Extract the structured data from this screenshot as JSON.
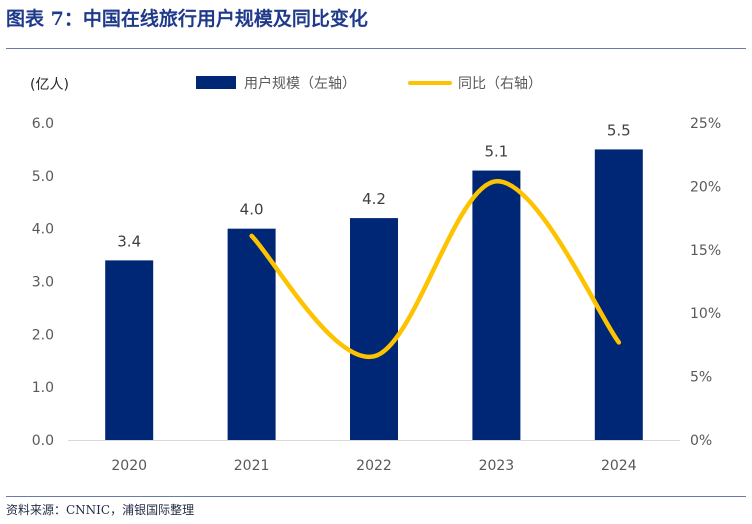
{
  "figure": {
    "title": "图表 7：中国在线旅行用户规模及同比变化",
    "source": "资料来源：CNNIC，浦银国际整理"
  },
  "colors": {
    "bar": "#002776",
    "line": "#FDC300",
    "title": "#1F3A8A",
    "axis_text": "#595959",
    "rule": "#6B7BA8"
  },
  "chart_data": {
    "type": "bar",
    "title": "中国在线旅行用户规模及同比变化",
    "unit_label": "(亿人)",
    "categories": [
      "2020",
      "2021",
      "2022",
      "2023",
      "2024"
    ],
    "series": [
      {
        "name": "用户规模（左轴）",
        "type": "bar",
        "axis": "left",
        "values": [
          3.4,
          4.0,
          4.2,
          5.1,
          5.5
        ]
      },
      {
        "name": "同比（右轴）",
        "type": "line",
        "axis": "right",
        "smooth": true,
        "values": [
          null,
          0.161,
          0.066,
          0.204,
          0.077
        ]
      }
    ],
    "data_labels": [
      "3.4",
      "4.0",
      "4.2",
      "5.1",
      "5.5"
    ],
    "y_left": {
      "min": 0,
      "max": 6,
      "ticks": [
        "0.0",
        "1.0",
        "2.0",
        "3.0",
        "4.0",
        "5.0",
        "6.0"
      ]
    },
    "y_right": {
      "min": 0,
      "max": 0.25,
      "ticks": [
        "0%",
        "5%",
        "10%",
        "15%",
        "20%",
        "25%"
      ]
    },
    "legend_position": "top",
    "grid": false
  }
}
